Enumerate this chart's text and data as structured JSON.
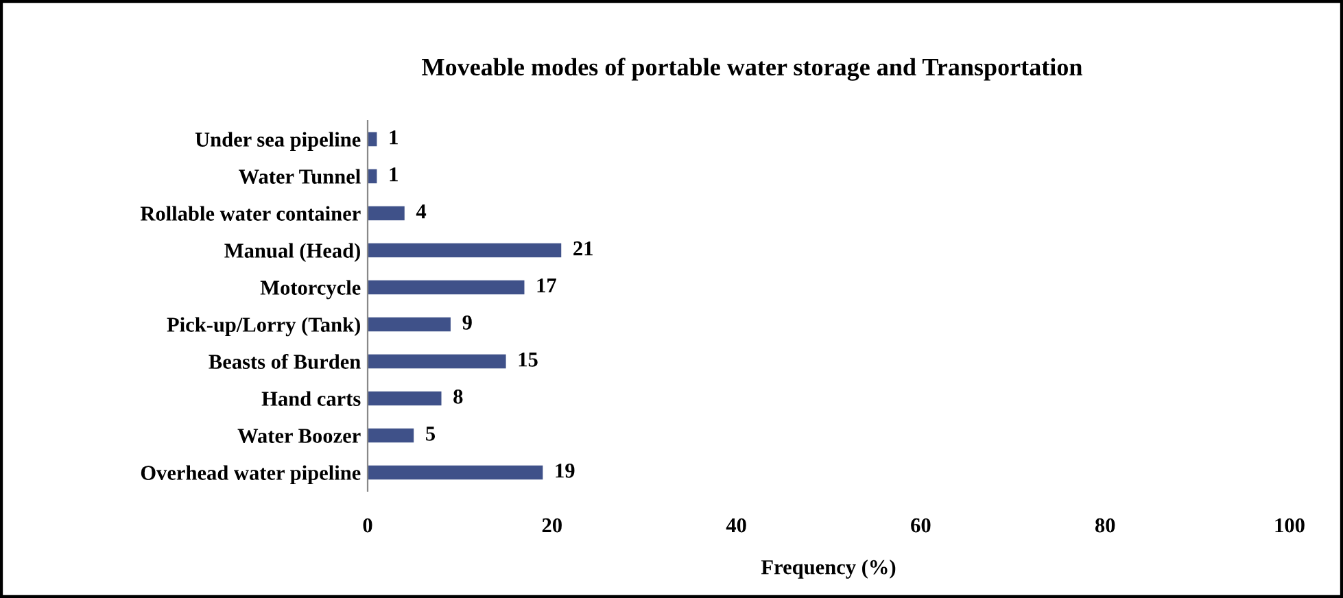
{
  "chart_data": {
    "type": "bar",
    "orientation": "horizontal",
    "title": "Moveable modes of portable water storage and Transportation",
    "xlabel": "Frequency (%)",
    "categories": [
      "Under sea pipeline",
      "Water Tunnel",
      "Rollable water container",
      "Manual (Head)",
      "Motorcycle",
      "Pick-up/Lorry (Tank)",
      "Beasts of Burden",
      "Hand carts",
      "Water Boozer",
      "Overhead water pipeline"
    ],
    "values": [
      1,
      1,
      4,
      21,
      17,
      9,
      15,
      8,
      5,
      19
    ],
    "color": "#3f5189",
    "xlim": [
      0,
      100
    ],
    "xticks": [
      0,
      20,
      40,
      60,
      80,
      100
    ],
    "data_labels": true,
    "grid": false,
    "legend": false
  }
}
